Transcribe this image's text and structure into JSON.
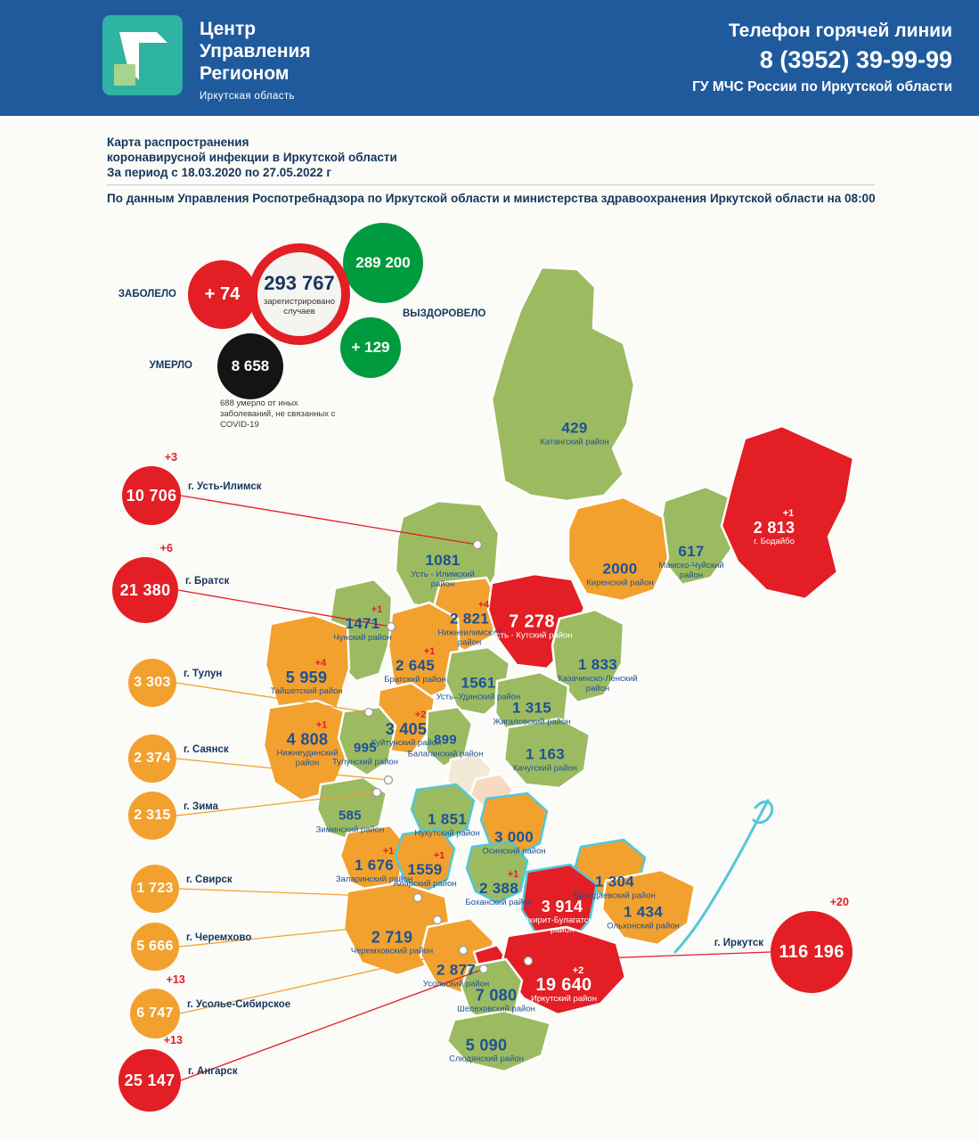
{
  "colors": {
    "green": "#9cbb61",
    "orange": "#f2a12e",
    "red": "#e31e24",
    "recovered_green": "#009b3e",
    "navy": "#14365d",
    "header_blue": "#1f5a9d",
    "cyan": "#54c6d8",
    "pale_cream": "#f2e9d7",
    "pale_pink": "#f8d9c4"
  },
  "header": {
    "logo_line1": "Центр",
    "logo_line2": "Управления",
    "logo_line3": "Регионом",
    "logo_subtitle": "Иркутская область",
    "hotline_title": "Телефон горячей линии",
    "hotline_phone": "8 (3952) 39-99-99",
    "hotline_org": "ГУ МЧС России по Иркутской области"
  },
  "intro": {
    "title_line1": "Карта распространения",
    "title_line2": "коронавирусной инфекции в Иркутской области",
    "title_line3": "За период с 18.03.2020 по 27.05.2022 г",
    "source_line": "По данным Управления Роспотребнадзора по Иркутской области и министерства здравоохранения Иркутской области на 08:00"
  },
  "stats": {
    "sick_label": "ЗАБОЛЕЛО",
    "sick_delta": "+ 74",
    "registered_value": "293 767",
    "registered_caption": "зарегистрировано случаев",
    "recovered_value": "289 200",
    "recovered_label": "ВЫЗДОРОВЕЛО",
    "recovered_delta": "+ 129",
    "died_label": "УМЕРЛО",
    "died_value": "8 658",
    "died_note": "688 умерло от иных заболеваний, не связанных с COVID-19"
  },
  "regions": [
    {
      "id": "katangsky",
      "value": "429",
      "delta": "",
      "name": "Катангский район",
      "color": "green"
    },
    {
      "id": "ust-ilimsky",
      "value": "1081",
      "delta": "",
      "name": "Усть - Илимский район",
      "color": "green"
    },
    {
      "id": "bodaibo",
      "value": "2 813",
      "delta": "+1",
      "name": "г. Бодайбо",
      "color": "red"
    },
    {
      "id": "mamsko-chuysky",
      "value": "617",
      "delta": "",
      "name": "Мамско-Чуйский район",
      "color": "green"
    },
    {
      "id": "kirensky",
      "value": "2000",
      "delta": "",
      "name": "Киренский район",
      "color": "orange"
    },
    {
      "id": "chunsky",
      "value": "1471",
      "delta": "+1",
      "name": "Чунский район",
      "color": "green"
    },
    {
      "id": "nizhneilimsky",
      "value": "2 821",
      "delta": "+4",
      "name": "Нижнеилимский район",
      "color": "orange"
    },
    {
      "id": "ust-kutsky",
      "value": "7 278",
      "delta": "",
      "name": "Усть - Кутский район",
      "color": "red"
    },
    {
      "id": "bratsky",
      "value": "2 645",
      "delta": "+1",
      "name": "Братский район",
      "color": "orange"
    },
    {
      "id": "kazachinsko-lensky",
      "value": "1 833",
      "delta": "",
      "name": "Казачинско-Ленский район",
      "color": "green"
    },
    {
      "id": "taishetsky",
      "value": "5 959",
      "delta": "+4",
      "name": "Тайшетский район",
      "color": "orange"
    },
    {
      "id": "ust-udinsky",
      "value": "1561",
      "delta": "",
      "name": "Усть–Удинский район",
      "color": "green"
    },
    {
      "id": "zhigalovsky",
      "value": "1 315",
      "delta": "",
      "name": "Жигаловский район",
      "color": "green"
    },
    {
      "id": "kuitunsky",
      "value": "3 405",
      "delta": "+2",
      "name": "Куйтунский район",
      "color": "orange"
    },
    {
      "id": "balagansky",
      "value": "899",
      "delta": "",
      "name": "Балаганский район",
      "color": "green"
    },
    {
      "id": "nizhneudinsky",
      "value": "4 808",
      "delta": "+1",
      "name": "Нижнеудинский район",
      "color": "orange"
    },
    {
      "id": "tulunsky",
      "value": "995",
      "delta": "",
      "name": "Тулунский район",
      "color": "green"
    },
    {
      "id": "kachugsky",
      "value": "1 163",
      "delta": "",
      "name": "Качугский район",
      "color": "green"
    },
    {
      "id": "ziminsky",
      "value": "585",
      "delta": "",
      "name": "Зиминский район",
      "color": "green"
    },
    {
      "id": "nukutsky",
      "value": "1 851",
      "delta": "",
      "name": "Нукутский район",
      "color": "green"
    },
    {
      "id": "osinsky",
      "value": "3 000",
      "delta": "",
      "name": "Осинский район",
      "color": "orange"
    },
    {
      "id": "zalarinsky",
      "value": "1 676",
      "delta": "+1",
      "name": "Заларинский район",
      "color": "orange"
    },
    {
      "id": "alarsky",
      "value": "1559",
      "delta": "+1",
      "name": "Аларский район",
      "color": "orange"
    },
    {
      "id": "bokhansky",
      "value": "2 388",
      "delta": "+1",
      "name": "Боханский район",
      "color": "green"
    },
    {
      "id": "bayandaevsky",
      "value": "1 304",
      "delta": "",
      "name": "Баяндаевский район",
      "color": "orange"
    },
    {
      "id": "ekhirit-bulagatsky",
      "value": "3 914",
      "delta": "",
      "name": "Эхирит-Булагатский район",
      "color": "red"
    },
    {
      "id": "olkhonsky",
      "value": "1 434",
      "delta": "",
      "name": "Ольхонский район",
      "color": "orange"
    },
    {
      "id": "cheremkhovsky",
      "value": "2 719",
      "delta": "",
      "name": "Черемховский район",
      "color": "orange"
    },
    {
      "id": "usolsky",
      "value": "2 877",
      "delta": "",
      "name": "Усольский район",
      "color": "orange"
    },
    {
      "id": "irkutsky",
      "value": "19 640",
      "delta": "+2",
      "name": "Иркутский район",
      "color": "red"
    },
    {
      "id": "shelekhovsky",
      "value": "7 080",
      "delta": "",
      "name": "Шелеховский район",
      "color": "green"
    },
    {
      "id": "slyudyansky",
      "value": "5 090",
      "delta": "",
      "name": "Слюдянский район",
      "color": "green"
    }
  ],
  "cities": [
    {
      "id": "ust-ilimsk-city",
      "value": "10 706",
      "delta": "+3",
      "name": "г. Усть-Илимск",
      "color": "red"
    },
    {
      "id": "bratsk-city",
      "value": "21 380",
      "delta": "+6",
      "name": "г. Братск",
      "color": "red"
    },
    {
      "id": "tulun-city",
      "value": "3 303",
      "delta": "",
      "name": "г. Тулун",
      "color": "orange"
    },
    {
      "id": "sayansk-city",
      "value": "2 374",
      "delta": "",
      "name": "г. Саянск",
      "color": "orange"
    },
    {
      "id": "zima-city",
      "value": "2 315",
      "delta": "",
      "name": "г. Зима",
      "color": "orange"
    },
    {
      "id": "svirsk-city",
      "value": "1 723",
      "delta": "",
      "name": "г. Свирск",
      "color": "orange"
    },
    {
      "id": "cheremkhovo-city",
      "value": "5 666",
      "delta": "",
      "name": "г. Черемхово",
      "color": "orange"
    },
    {
      "id": "usolye-city",
      "value": "6 747",
      "delta": "+13",
      "name": "г. Усолье-Сибирское",
      "color": "orange"
    },
    {
      "id": "angarsk-city",
      "value": "25 147",
      "delta": "+13",
      "name": "г. Ангарск",
      "color": "red"
    },
    {
      "id": "irkutsk-city",
      "value": "116 196",
      "delta": "+20",
      "name": "г. Иркутск",
      "color": "red"
    }
  ]
}
